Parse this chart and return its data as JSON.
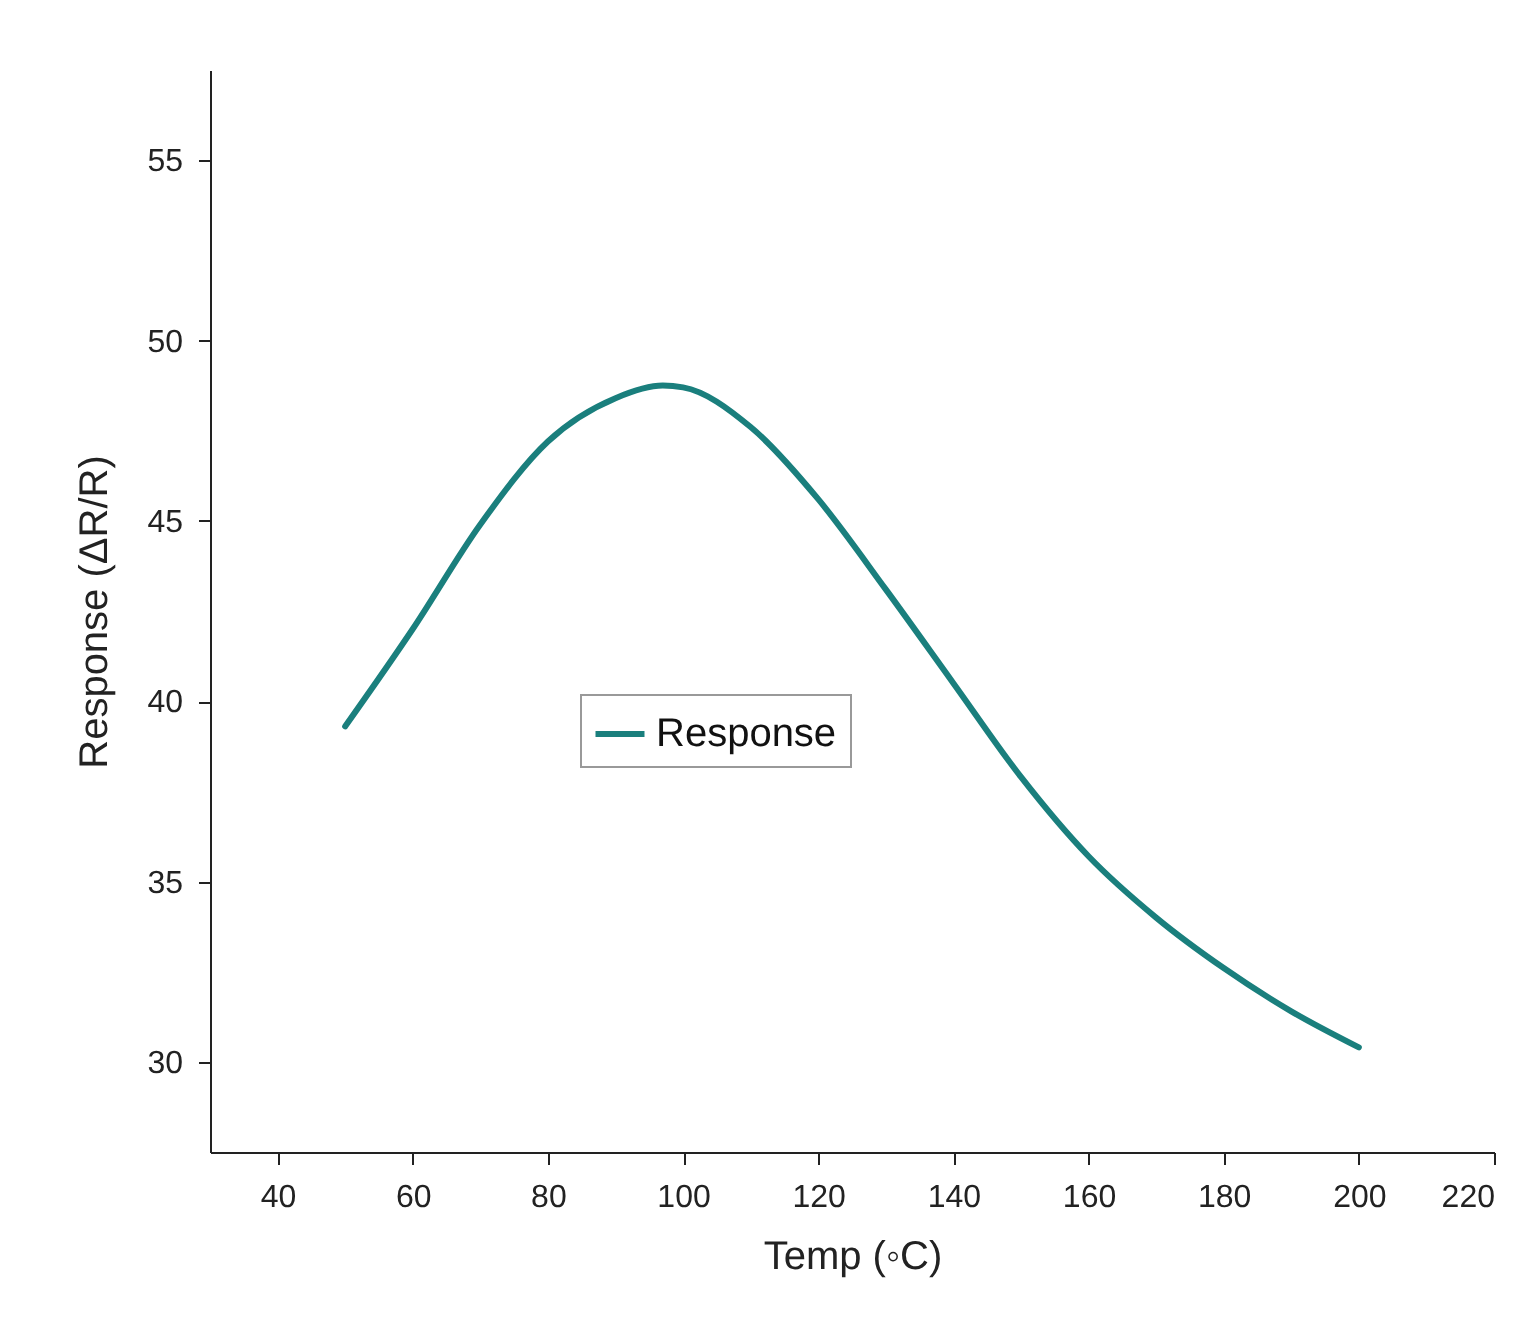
{
  "chart_data": {
    "type": "line",
    "xlabel": "Temp (◦C)",
    "ylabel": "Response (ΔR/R)",
    "x": [
      50,
      60,
      70,
      80,
      90,
      97,
      100,
      110,
      120,
      130,
      140,
      150,
      160,
      170,
      180,
      190,
      200
    ],
    "series": [
      {
        "name": "Response",
        "color": "#1a7f7d",
        "values": [
          39.3,
          42.0,
          44.9,
          47.2,
          48.4,
          48.75,
          48.7,
          47.6,
          45.6,
          43.1,
          40.5,
          37.9,
          35.7,
          34.0,
          32.6,
          31.4,
          30.4
        ]
      }
    ],
    "xlim": [
      30,
      220
    ],
    "xticks": [
      40,
      60,
      80,
      100,
      120,
      140,
      160,
      180,
      200,
      220
    ],
    "ylim": [
      27.5,
      57.5
    ],
    "yticks": [
      30,
      35,
      40,
      45,
      50,
      55
    ],
    "legend": "center"
  }
}
